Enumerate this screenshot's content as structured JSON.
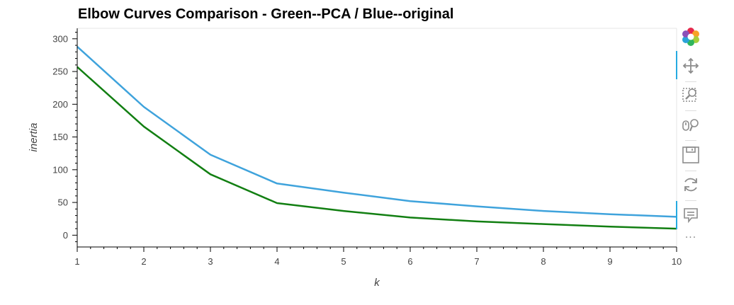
{
  "chart_data": {
    "type": "line",
    "title": "Elbow Curves Comparison  - Green--PCA / Blue--original",
    "xlabel": "k",
    "ylabel": "inertia",
    "x": [
      1,
      2,
      3,
      4,
      5,
      6,
      7,
      8,
      9,
      10
    ],
    "xlim": [
      1,
      10
    ],
    "ylim": [
      -18,
      316
    ],
    "yticks": [
      0,
      50,
      100,
      150,
      200,
      250,
      300
    ],
    "xticks": [
      1,
      2,
      3,
      4,
      5,
      6,
      7,
      8,
      9,
      10
    ],
    "grid": false,
    "legend": "none",
    "series": [
      {
        "color": "#3fa3dc",
        "values": [
          288,
          196,
          123,
          79,
          65,
          52,
          44,
          37,
          32,
          28
        ]
      },
      {
        "color": "#127f12",
        "values": [
          257,
          166,
          93,
          49,
          37,
          27,
          21,
          17,
          13,
          10
        ]
      }
    ]
  },
  "toolbar": {
    "tools": [
      {
        "icon": "bokeh-logo-icon"
      },
      {
        "icon": "pan-icon",
        "active": true
      },
      {
        "icon": "box-zoom-icon"
      },
      {
        "icon": "wheel-zoom-icon"
      },
      {
        "icon": "save-icon"
      },
      {
        "icon": "reset-icon"
      },
      {
        "icon": "hover-icon",
        "active": true
      },
      {
        "icon": "more-icon",
        "label": "..."
      }
    ],
    "accent": "#26aae1"
  }
}
